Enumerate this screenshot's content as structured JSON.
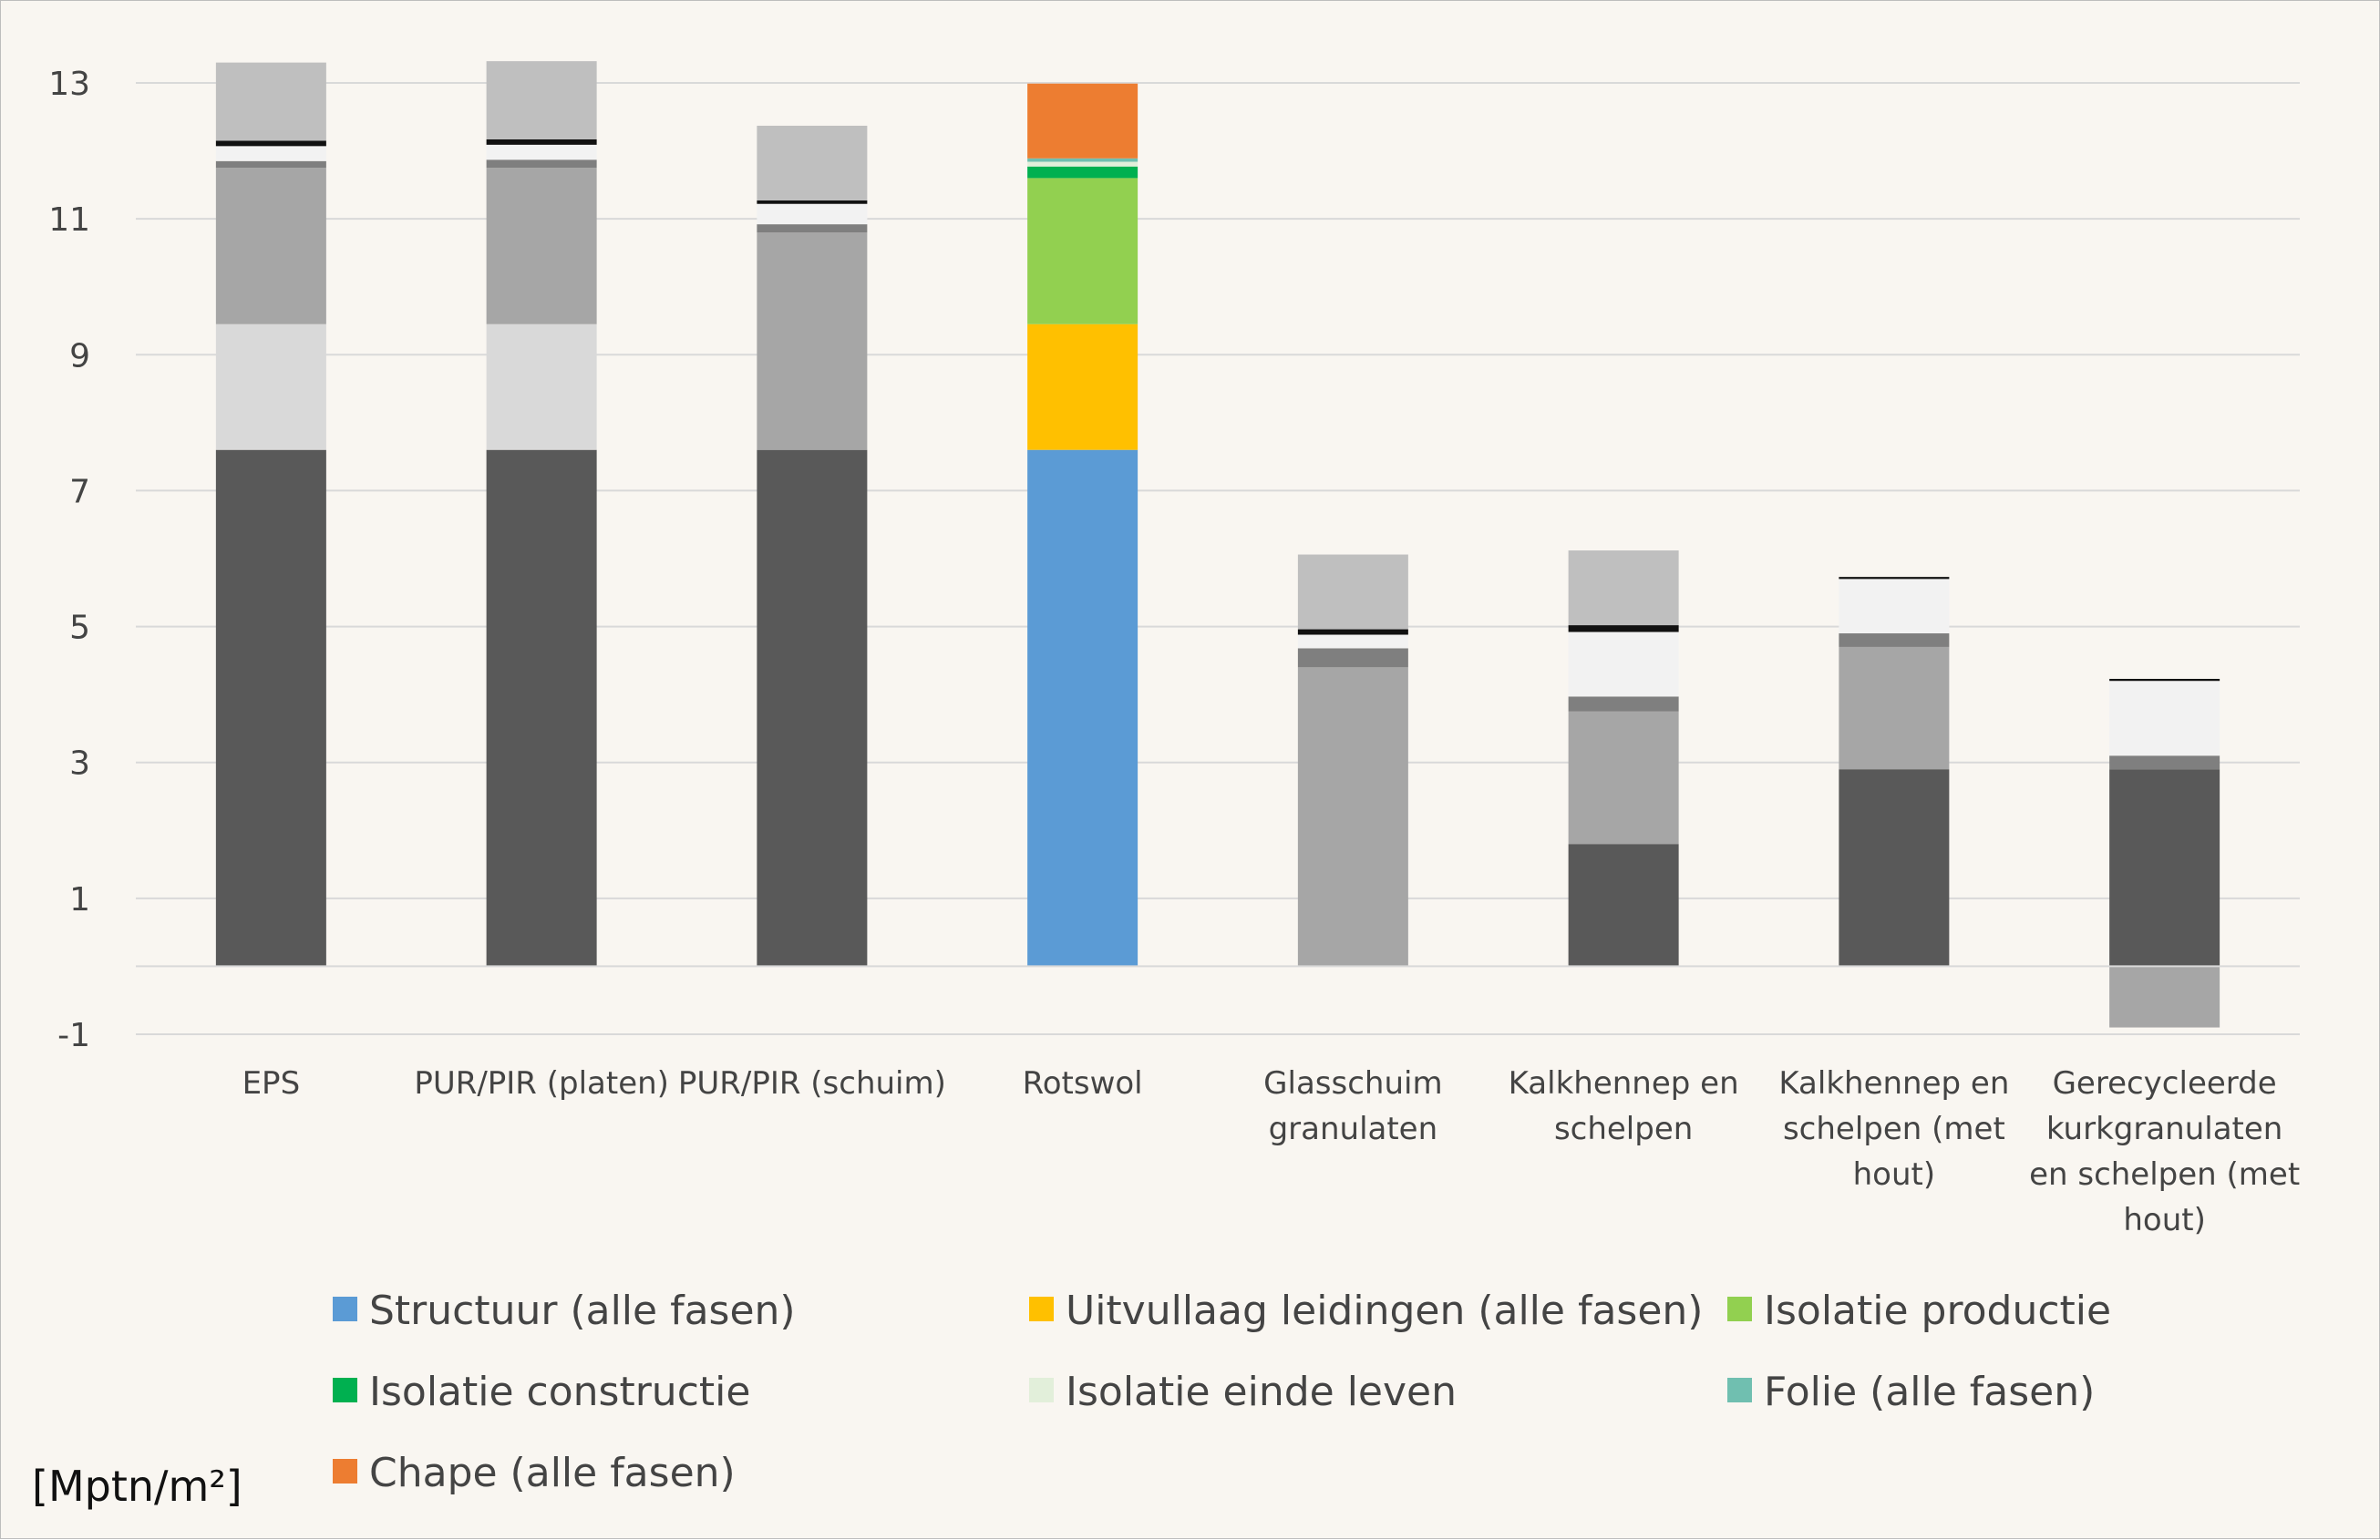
{
  "chart_data": {
    "type": "bar",
    "stacked": true,
    "unit_label": "[Mptn/m²]",
    "ylim": [
      -1,
      13.4
    ],
    "yticks": [
      -1,
      1,
      3,
      5,
      7,
      9,
      11,
      13
    ],
    "grid": true,
    "legend_position": "bottom",
    "categories": [
      "EPS",
      "PUR/PIR (platen)",
      "PUR/PIR (schuim)",
      "Rotswol",
      "Glasschuim granulaten",
      "Kalkhennep en schelpen",
      "Kalkhennep en schelpen (met hout)",
      "Gerecycleerde kurkgranulaten en schelpen (met hout)"
    ],
    "category_lines": [
      [
        "EPS"
      ],
      [
        "PUR/PIR (platen)"
      ],
      [
        "PUR/PIR (schuim)"
      ],
      [
        "Rotswol"
      ],
      [
        "Glasschuim",
        "granulaten"
      ],
      [
        "Kalkhennep en",
        "schelpen"
      ],
      [
        "Kalkhennep en",
        "schelpen (met",
        "hout)"
      ],
      [
        "Gerecycleerde",
        "kurkgranulaten",
        "en schelpen (met",
        "hout)"
      ]
    ],
    "series": [
      {
        "name": "Structuur (alle fasen)",
        "color": "#5b9bd5",
        "gray": "#595959",
        "values": [
          7.6,
          7.6,
          7.6,
          7.6,
          0,
          1.8,
          2.9,
          2.9
        ]
      },
      {
        "name": "Uitvullaag leidingen (alle fasen)",
        "color": "#ffc000",
        "gray": "#d9d9d9",
        "values": [
          1.85,
          1.85,
          0,
          1.85,
          0,
          0,
          0,
          0
        ]
      },
      {
        "name": "Isolatie productie",
        "color": "#92d050",
        "gray": "#a6a6a6",
        "values": [
          2.3,
          2.3,
          3.2,
          2.15,
          4.4,
          1.95,
          1.8,
          -0.9
        ]
      },
      {
        "name": "Isolatie constructie",
        "color": "#00b050",
        "gray": "#7f7f7f",
        "values": [
          0.1,
          0.12,
          0.12,
          0.17,
          0.28,
          0.22,
          0.2,
          0.2
        ]
      },
      {
        "name": "Isolatie einde leven",
        "color": "#e2efda",
        "gray": "#f2f2f2",
        "values": [
          0.22,
          0.22,
          0.3,
          0.07,
          0.2,
          0.95,
          0.8,
          1.1
        ]
      },
      {
        "name": "Folie (alle fasen)",
        "color": "#70bfb0",
        "gray": "#111111",
        "values": [
          0.08,
          0.08,
          0.05,
          0.05,
          0.08,
          0.1,
          0.03,
          0.03
        ]
      },
      {
        "name": "Chape (alle fasen)",
        "color": "#ed7d31",
        "gray": "#bfbfbf",
        "values": [
          1.15,
          1.15,
          1.1,
          1.1,
          1.1,
          1.1,
          0,
          0
        ]
      }
    ],
    "highlight_category_index": 3
  }
}
